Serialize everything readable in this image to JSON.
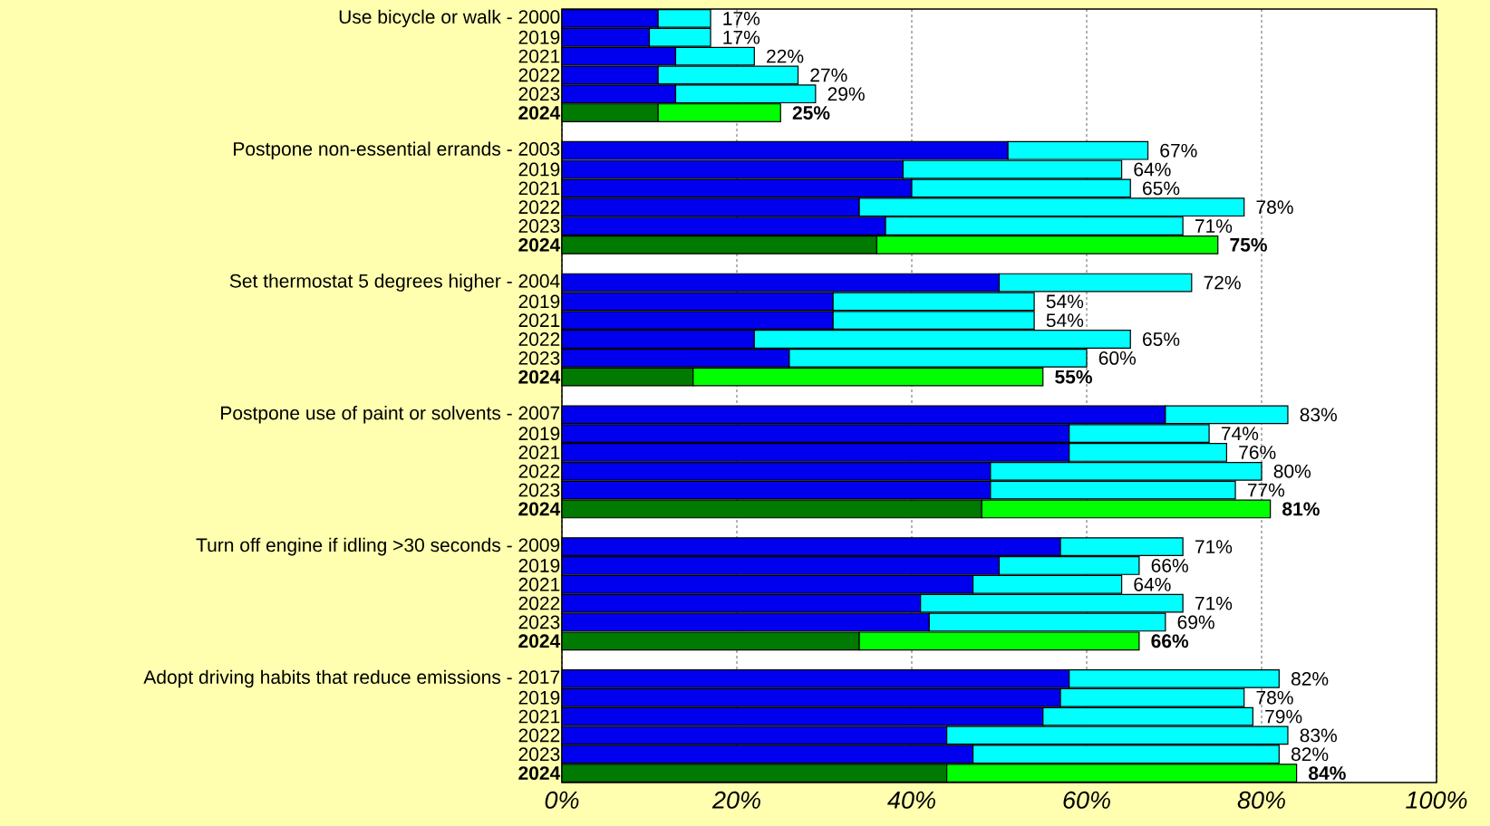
{
  "chart_data": {
    "type": "bar",
    "orientation": "horizontal",
    "stacked": true,
    "categories": [
      "Use bicycle or walk - 2000",
      "2019",
      "2021",
      "2022",
      "2023",
      "2024",
      null,
      "Postpone non-essential errands - 2003",
      "2019",
      "2021",
      "2022",
      "2023",
      "2024",
      null,
      "Set thermostat 5 degrees higher - 2004",
      "2019",
      "2021",
      "2022",
      "2023",
      "2024",
      null,
      "Postpone use of paint or solvents - 2007",
      "2019",
      "2021",
      "2022",
      "2023",
      "2024",
      null,
      "Turn off engine if idling >30 seconds - 2009",
      "2019",
      "2021",
      "2022",
      "2023",
      "2024",
      null,
      "Adopt driving habits that reduce emissions - 2017",
      "2019",
      "2021",
      "2022",
      "2023",
      "2024"
    ],
    "series": [
      {
        "values": [
          11,
          10,
          13,
          11,
          13,
          11,
          null,
          51,
          39,
          40,
          34,
          37,
          36,
          null,
          50,
          31,
          31,
          22,
          26,
          15,
          null,
          69,
          58,
          58,
          49,
          49,
          48,
          null,
          57,
          50,
          47,
          41,
          42,
          34,
          null,
          58,
          57,
          55,
          44,
          47,
          44
        ],
        "colors": [
          "#0000ee",
          "#0000ee",
          "#0000ee",
          "#0000ee",
          "#0000ee",
          "#007a00",
          null,
          "#0000ee",
          "#0000ee",
          "#0000ee",
          "#0000ee",
          "#0000ee",
          "#007a00",
          null,
          "#0000ee",
          "#0000ee",
          "#0000ee",
          "#0000ee",
          "#0000ee",
          "#007a00",
          null,
          "#0000ee",
          "#0000ee",
          "#0000ee",
          "#0000ee",
          "#0000ee",
          "#007a00",
          null,
          "#0000ee",
          "#0000ee",
          "#0000ee",
          "#0000ee",
          "#0000ee",
          "#007a00",
          null,
          "#0000ee",
          "#0000ee",
          "#0000ee",
          "#0000ee",
          "#0000ee",
          "#007a00"
        ]
      },
      {
        "values": [
          6,
          7,
          9,
          16,
          16,
          14,
          null,
          16,
          25,
          25,
          44,
          34,
          39,
          null,
          22,
          23,
          23,
          43,
          34,
          40,
          null,
          14,
          16,
          18,
          31,
          28,
          33,
          null,
          14,
          16,
          17,
          30,
          27,
          32,
          null,
          24,
          21,
          24,
          39,
          35,
          40
        ],
        "colors": [
          "#00ffff",
          "#00ffff",
          "#00ffff",
          "#00ffff",
          "#00ffff",
          "#00ff00",
          null,
          "#00ffff",
          "#00ffff",
          "#00ffff",
          "#00ffff",
          "#00ffff",
          "#00ff00",
          null,
          "#00ffff",
          "#00ffff",
          "#00ffff",
          "#00ffff",
          "#00ffff",
          "#00ff00",
          null,
          "#00ffff",
          "#00ffff",
          "#00ffff",
          "#00ffff",
          "#00ffff",
          "#00ff00",
          null,
          "#00ffff",
          "#00ffff",
          "#00ffff",
          "#00ffff",
          "#00ffff",
          "#00ff00",
          null,
          "#00ffff",
          "#00ffff",
          "#00ffff",
          "#00ffff",
          "#00ffff",
          "#00ff00"
        ]
      }
    ],
    "totals": [
      "17%",
      "17%",
      "22%",
      "27%",
      "29%",
      "25%",
      null,
      "67%",
      "64%",
      "65%",
      "78%",
      "71%",
      "75%",
      null,
      "72%",
      "54%",
      "54%",
      "65%",
      "60%",
      "55%",
      null,
      "83%",
      "74%",
      "76%",
      "80%",
      "77%",
      "81%",
      null,
      "71%",
      "66%",
      "64%",
      "71%",
      "69%",
      "66%",
      null,
      "82%",
      "78%",
      "79%",
      "83%",
      "82%",
      "84%"
    ],
    "xlim": [
      0,
      100
    ],
    "xticks": [
      {
        "value": 0,
        "label": "0%"
      },
      {
        "value": 20,
        "label": "20%"
      },
      {
        "value": 40,
        "label": "40%"
      },
      {
        "value": 60,
        "label": "60%"
      },
      {
        "value": 80,
        "label": "80%"
      },
      {
        "value": 100,
        "label": "100%"
      }
    ],
    "grid": "x"
  }
}
